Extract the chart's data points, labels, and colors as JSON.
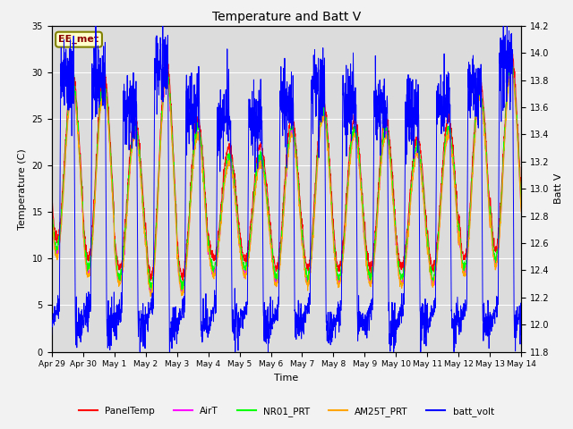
{
  "title": "Temperature and Batt V",
  "xlabel": "Time",
  "ylabel_left": "Temperature (C)",
  "ylabel_right": "Batt V",
  "ylim_left": [
    0,
    35
  ],
  "ylim_right": [
    11.8,
    14.2
  ],
  "yticks_left": [
    0,
    5,
    10,
    15,
    20,
    25,
    30,
    35
  ],
  "yticks_right": [
    11.8,
    12.0,
    12.2,
    12.4,
    12.6,
    12.8,
    13.0,
    13.2,
    13.4,
    13.6,
    13.8,
    14.0,
    14.2
  ],
  "xticklabels": [
    "Apr 29",
    "Apr 30",
    "May 1",
    "May 2",
    "May 3",
    "May 4",
    "May 5",
    "May 6",
    "May 7",
    "May 8",
    "May 9",
    "May 10",
    "May 11",
    "May 12",
    "May 13",
    "May 14"
  ],
  "annotation_text": "EE_met",
  "annotation_color": "#8B0000",
  "colors": {
    "PanelTemp": "#FF0000",
    "AirT": "#FF00FF",
    "NR01_PRT": "#00FF00",
    "AM25T_PRT": "#FFA500",
    "batt_volt": "#0000FF"
  },
  "legend_labels": [
    "PanelTemp",
    "AirT",
    "NR01_PRT",
    "AM25T_PRT",
    "batt_volt"
  ],
  "plot_bg_color": "#DCDCDC",
  "fig_bg_color": "#F2F2F2",
  "grid_color": "#FFFFFF",
  "num_days": 15,
  "pts_per_day": 144,
  "day_max_temps": [
    30,
    30,
    25,
    31,
    25,
    22,
    22,
    25,
    27,
    25,
    25,
    23,
    25,
    29,
    32
  ],
  "day_min_temps": [
    12,
    10,
    9,
    8,
    8,
    10,
    10,
    9,
    9,
    9,
    9,
    9,
    9,
    10,
    11
  ]
}
